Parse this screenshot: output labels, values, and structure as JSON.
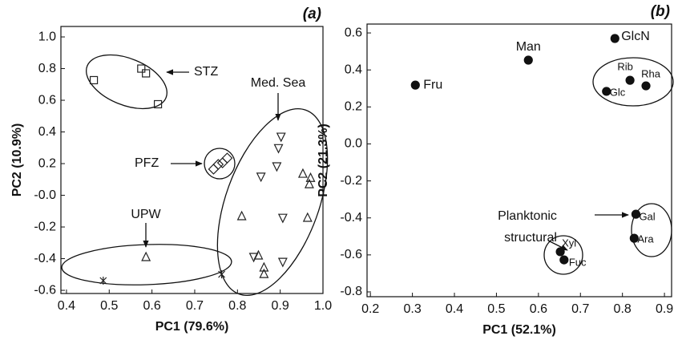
{
  "chart_data": [
    {
      "type": "scatter",
      "title": "(a)",
      "xlabel": "PC1 (79.6%)",
      "ylabel": "PC2 (10.9%)",
      "xlim": [
        0.387,
        1.0
      ],
      "ylim": [
        -0.62,
        1.066
      ],
      "xticks": [
        0.4,
        0.5,
        0.6,
        0.7,
        0.8,
        0.9,
        {
          "value": 1,
          "label": "1.0"
        }
      ],
      "yticks": [
        {
          "value": 1,
          "label": "1.0"
        },
        0.8,
        0.6,
        0.4,
        0.2,
        {
          "value": 0,
          "label": "-0.0"
        },
        -0.2,
        -0.4,
        -0.6
      ],
      "series": [
        {
          "marker": "square",
          "color": "#222222",
          "x": [
            0.464,
            0.575,
            0.586,
            0.614
          ],
          "values": [
            0.727,
            0.8,
            0.77,
            0.575
          ]
        },
        {
          "marker": "diamond",
          "color": "#222222",
          "x": [
            0.744,
            0.755,
            0.765,
            0.776
          ],
          "values": [
            0.165,
            0.195,
            0.205,
            0.235
          ]
        },
        {
          "marker": "triangle-down",
          "color": "#222222",
          "x": [
            0.902,
            0.896,
            0.892,
            0.855,
            0.906,
            0.906,
            0.838
          ],
          "values": [
            0.372,
            0.3,
            0.185,
            0.12,
            -0.14,
            -0.418,
            -0.387
          ]
        },
        {
          "marker": "triangle-up",
          "color": "#222222",
          "x": [
            0.953,
            0.971,
            0.968,
            0.81,
            0.964,
            0.849,
            0.862,
            0.862,
            0.586
          ],
          "values": [
            0.134,
            0.108,
            0.068,
            -0.134,
            -0.144,
            -0.382,
            -0.458,
            -0.499,
            -0.392
          ]
        },
        {
          "marker": "star",
          "color": "#222222",
          "x": [
            0.486,
            0.763
          ],
          "values": [
            -0.539,
            -0.499
          ]
        }
      ],
      "annotations": [
        "STZ",
        "PFZ",
        "Med. Sea",
        "UPW"
      ]
    },
    {
      "type": "scatter",
      "title": "(b)",
      "xlabel": "PC1 (52.1%)",
      "ylabel": "PC2 (21.3%)",
      "xlim": [
        0.192,
        0.917
      ],
      "ylim": [
        -0.826,
        0.648
      ],
      "xticks": [
        0.2,
        0.3,
        0.4,
        0.5,
        0.6,
        0.7,
        0.8,
        0.9
      ],
      "yticks": [
        0.6,
        0.4,
        0.2,
        {
          "value": 0,
          "label": "0.0"
        },
        -0.2,
        -0.4,
        -0.6,
        -0.8
      ],
      "series": [
        {
          "marker": "circle",
          "color": "#111111",
          "labels": [
            "Fru",
            "Man",
            "GlcN",
            "Rib",
            "Rha",
            "Glc",
            "Gal",
            "Ara",
            "Xyl",
            "Fuc"
          ],
          "x": [
            0.307,
            0.576,
            0.782,
            0.818,
            0.856,
            0.762,
            0.832,
            0.828,
            0.652,
            0.661
          ],
          "values": [
            0.318,
            0.453,
            0.57,
            0.344,
            0.314,
            0.284,
            -0.38,
            -0.51,
            -0.583,
            -0.627
          ]
        }
      ],
      "annotations": [
        "Planktonic",
        "structural"
      ]
    }
  ]
}
